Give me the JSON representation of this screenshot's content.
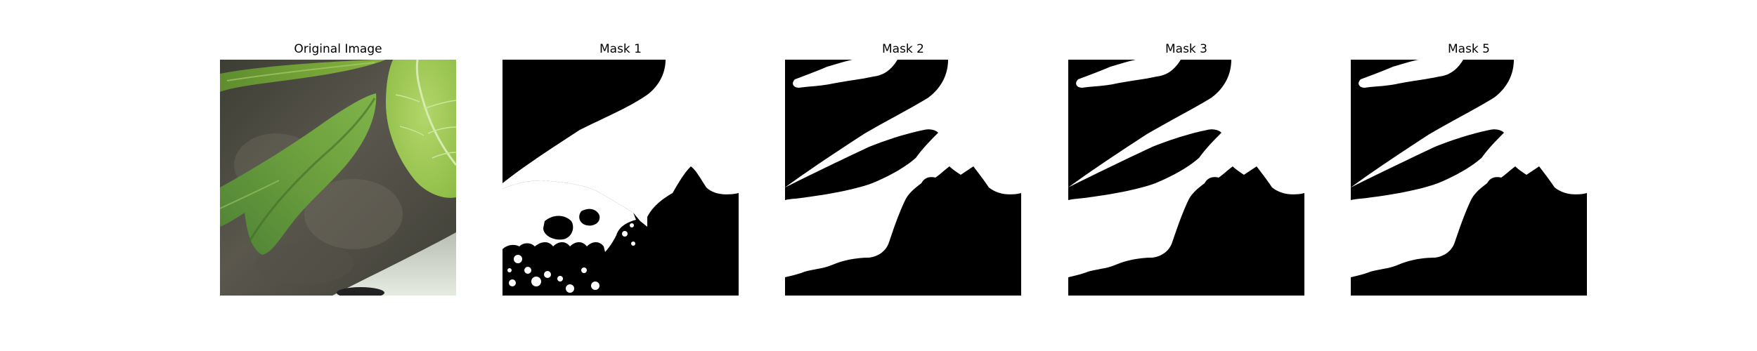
{
  "figure": {
    "panels": [
      {
        "title": "Original Image"
      },
      {
        "title": "Mask 1"
      },
      {
        "title": "Mask 2"
      },
      {
        "title": "Mask 3"
      },
      {
        "title": "Mask 5"
      }
    ]
  },
  "colors": {
    "mask_foreground": "#ffffff",
    "mask_background": "#000000",
    "leaf_light": "#9bc54d",
    "leaf_dark": "#5f9438",
    "background_soil": "#4c4b43"
  }
}
